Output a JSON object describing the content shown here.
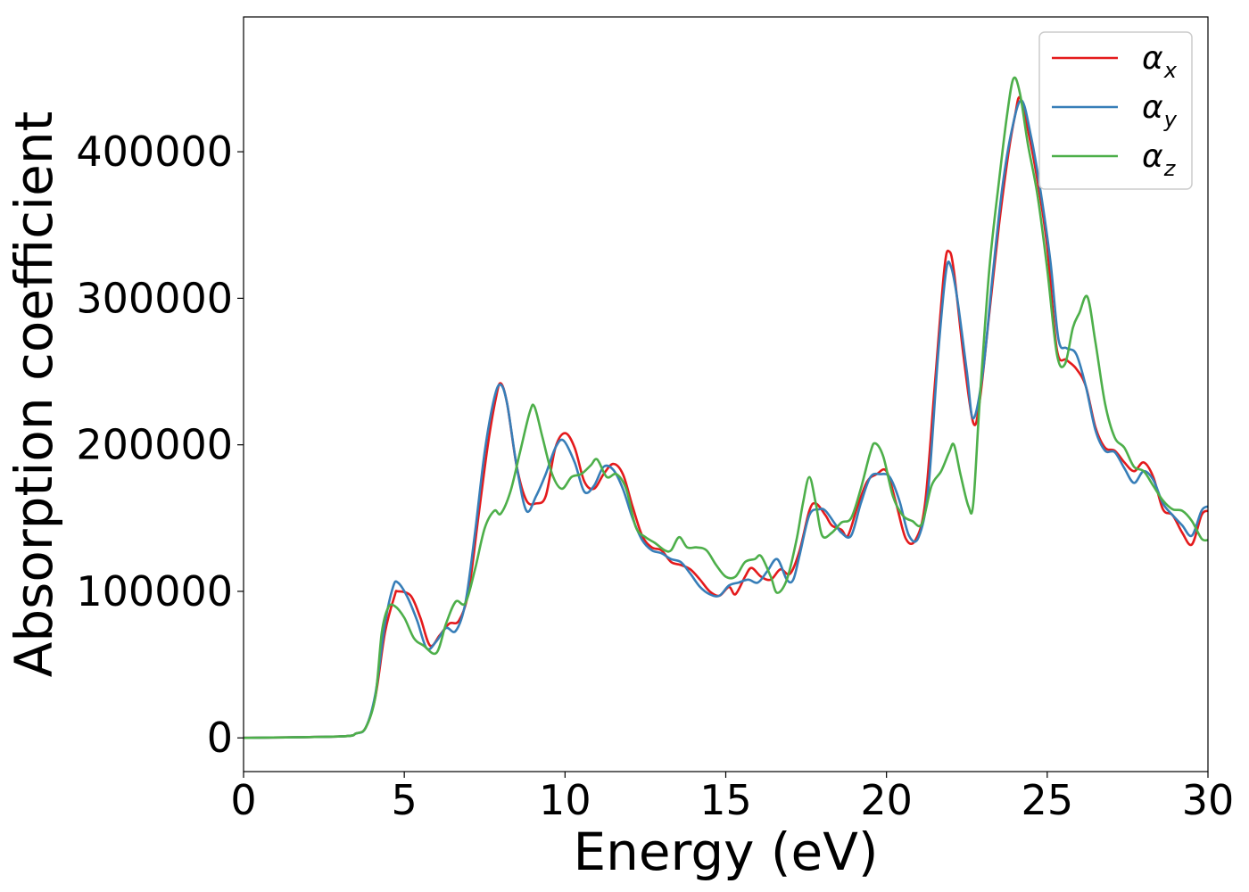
{
  "chart_data": {
    "type": "line",
    "xlabel": "Energy (eV)",
    "ylabel": "Absorption coefficient",
    "xlim": [
      0,
      30
    ],
    "ylim": [
      -23000,
      492000
    ],
    "xticks": [
      0,
      5,
      10,
      15,
      20,
      25,
      30
    ],
    "xtick_labels": [
      "0",
      "5",
      "10",
      "15",
      "20",
      "25",
      "30"
    ],
    "yticks": [
      0,
      100000,
      200000,
      300000,
      400000
    ],
    "ytick_labels": [
      "0",
      "100000",
      "200000",
      "300000",
      "400000"
    ],
    "grid": false,
    "legend_position": "top-right",
    "series": [
      {
        "name": "α",
        "sub": "x",
        "color": "#e41a1c",
        "points": [
          [
            0,
            0
          ],
          [
            3,
            1000
          ],
          [
            3.5,
            3000
          ],
          [
            3.8,
            7000
          ],
          [
            4.1,
            28000
          ],
          [
            4.4,
            72000
          ],
          [
            4.7,
            97000
          ],
          [
            4.8,
            100000
          ],
          [
            5.2,
            97000
          ],
          [
            5.5,
            82000
          ],
          [
            5.8,
            63000
          ],
          [
            6.1,
            70000
          ],
          [
            6.4,
            78000
          ],
          [
            6.7,
            80000
          ],
          [
            7.0,
            100000
          ],
          [
            7.3,
            150000
          ],
          [
            7.6,
            200000
          ],
          [
            7.85,
            232000
          ],
          [
            8.0,
            242000
          ],
          [
            8.2,
            228000
          ],
          [
            8.5,
            185000
          ],
          [
            8.8,
            162000
          ],
          [
            9.1,
            160000
          ],
          [
            9.4,
            165000
          ],
          [
            9.7,
            198000
          ],
          [
            10.0,
            208000
          ],
          [
            10.3,
            198000
          ],
          [
            10.6,
            175000
          ],
          [
            10.9,
            170000
          ],
          [
            11.2,
            180000
          ],
          [
            11.5,
            187000
          ],
          [
            11.8,
            180000
          ],
          [
            12.1,
            158000
          ],
          [
            12.4,
            138000
          ],
          [
            12.7,
            130000
          ],
          [
            13.0,
            128000
          ],
          [
            13.3,
            120000
          ],
          [
            13.6,
            118000
          ],
          [
            13.9,
            115000
          ],
          [
            14.2,
            108000
          ],
          [
            14.5,
            100000
          ],
          [
            14.8,
            97000
          ],
          [
            15.1,
            103000
          ],
          [
            15.3,
            98000
          ],
          [
            15.6,
            110000
          ],
          [
            15.8,
            116000
          ],
          [
            16.1,
            110000
          ],
          [
            16.4,
            108000
          ],
          [
            16.7,
            115000
          ],
          [
            17.0,
            112000
          ],
          [
            17.3,
            128000
          ],
          [
            17.6,
            155000
          ],
          [
            17.8,
            160000
          ],
          [
            18.1,
            152000
          ],
          [
            18.3,
            145000
          ],
          [
            18.6,
            142000
          ],
          [
            18.8,
            138000
          ],
          [
            19.1,
            158000
          ],
          [
            19.4,
            175000
          ],
          [
            19.7,
            180000
          ],
          [
            20.0,
            182000
          ],
          [
            20.3,
            160000
          ],
          [
            20.6,
            136000
          ],
          [
            20.9,
            135000
          ],
          [
            21.2,
            160000
          ],
          [
            21.5,
            240000
          ],
          [
            21.8,
            320000
          ],
          [
            21.95,
            332000
          ],
          [
            22.1,
            318000
          ],
          [
            22.4,
            260000
          ],
          [
            22.7,
            215000
          ],
          [
            22.9,
            230000
          ],
          [
            23.2,
            290000
          ],
          [
            23.5,
            350000
          ],
          [
            23.8,
            400000
          ],
          [
            24.0,
            425000
          ],
          [
            24.15,
            437000
          ],
          [
            24.4,
            415000
          ],
          [
            24.7,
            380000
          ],
          [
            25.0,
            335000
          ],
          [
            25.3,
            265000
          ],
          [
            25.6,
            258000
          ],
          [
            25.9,
            252000
          ],
          [
            26.2,
            240000
          ],
          [
            26.5,
            212000
          ],
          [
            26.8,
            198000
          ],
          [
            27.1,
            196000
          ],
          [
            27.4,
            188000
          ],
          [
            27.7,
            182000
          ],
          [
            28.0,
            188000
          ],
          [
            28.3,
            178000
          ],
          [
            28.6,
            156000
          ],
          [
            28.9,
            152000
          ],
          [
            29.2,
            140000
          ],
          [
            29.5,
            132000
          ],
          [
            29.8,
            152000
          ],
          [
            30.0,
            155000
          ]
        ]
      },
      {
        "name": "α",
        "sub": "y",
        "color": "#377eb8",
        "points": [
          [
            0,
            0
          ],
          [
            3,
            1000
          ],
          [
            3.5,
            3000
          ],
          [
            3.8,
            7000
          ],
          [
            4.1,
            30000
          ],
          [
            4.4,
            78000
          ],
          [
            4.65,
            103000
          ],
          [
            4.8,
            106000
          ],
          [
            5.1,
            96000
          ],
          [
            5.4,
            80000
          ],
          [
            5.7,
            61000
          ],
          [
            6.0,
            66000
          ],
          [
            6.3,
            75000
          ],
          [
            6.6,
            73000
          ],
          [
            6.9,
            92000
          ],
          [
            7.2,
            140000
          ],
          [
            7.5,
            195000
          ],
          [
            7.8,
            232000
          ],
          [
            8.0,
            241000
          ],
          [
            8.2,
            228000
          ],
          [
            8.5,
            185000
          ],
          [
            8.8,
            155000
          ],
          [
            9.1,
            165000
          ],
          [
            9.4,
            180000
          ],
          [
            9.7,
            198000
          ],
          [
            9.95,
            203000
          ],
          [
            10.3,
            188000
          ],
          [
            10.6,
            168000
          ],
          [
            10.9,
            172000
          ],
          [
            11.2,
            185000
          ],
          [
            11.5,
            183000
          ],
          [
            11.8,
            170000
          ],
          [
            12.1,
            150000
          ],
          [
            12.4,
            135000
          ],
          [
            12.7,
            128000
          ],
          [
            13.0,
            126000
          ],
          [
            13.3,
            122000
          ],
          [
            13.6,
            120000
          ],
          [
            13.9,
            112000
          ],
          [
            14.2,
            103000
          ],
          [
            14.5,
            98000
          ],
          [
            14.8,
            97000
          ],
          [
            15.1,
            104000
          ],
          [
            15.4,
            106000
          ],
          [
            15.7,
            108000
          ],
          [
            16.0,
            106000
          ],
          [
            16.3,
            114000
          ],
          [
            16.6,
            122000
          ],
          [
            16.9,
            108000
          ],
          [
            17.1,
            108000
          ],
          [
            17.3,
            125000
          ],
          [
            17.6,
            152000
          ],
          [
            17.9,
            156000
          ],
          [
            18.1,
            155000
          ],
          [
            18.4,
            146000
          ],
          [
            18.6,
            140000
          ],
          [
            18.9,
            138000
          ],
          [
            19.2,
            160000
          ],
          [
            19.5,
            178000
          ],
          [
            19.8,
            180000
          ],
          [
            20.1,
            178000
          ],
          [
            20.4,
            162000
          ],
          [
            20.7,
            138000
          ],
          [
            21.0,
            137000
          ],
          [
            21.3,
            170000
          ],
          [
            21.6,
            260000
          ],
          [
            21.85,
            318000
          ],
          [
            22.0,
            322000
          ],
          [
            22.2,
            300000
          ],
          [
            22.5,
            250000
          ],
          [
            22.7,
            218000
          ],
          [
            23.0,
            250000
          ],
          [
            23.3,
            315000
          ],
          [
            23.6,
            375000
          ],
          [
            23.9,
            415000
          ],
          [
            24.2,
            435000
          ],
          [
            24.5,
            410000
          ],
          [
            24.8,
            372000
          ],
          [
            25.1,
            325000
          ],
          [
            25.35,
            272000
          ],
          [
            25.6,
            266000
          ],
          [
            25.9,
            262000
          ],
          [
            26.2,
            240000
          ],
          [
            26.5,
            210000
          ],
          [
            26.8,
            196000
          ],
          [
            27.1,
            195000
          ],
          [
            27.4,
            184000
          ],
          [
            27.7,
            174000
          ],
          [
            28.0,
            182000
          ],
          [
            28.3,
            176000
          ],
          [
            28.6,
            160000
          ],
          [
            28.9,
            152000
          ],
          [
            29.2,
            145000
          ],
          [
            29.5,
            138000
          ],
          [
            29.8,
            155000
          ],
          [
            30.0,
            158000
          ]
        ]
      },
      {
        "name": "α",
        "sub": "z",
        "color": "#4daf4a",
        "points": [
          [
            0,
            0
          ],
          [
            3,
            1000
          ],
          [
            3.5,
            3000
          ],
          [
            3.8,
            7000
          ],
          [
            4.1,
            28000
          ],
          [
            4.3,
            72000
          ],
          [
            4.5,
            89000
          ],
          [
            4.7,
            90000
          ],
          [
            5.0,
            82000
          ],
          [
            5.3,
            68000
          ],
          [
            5.6,
            63000
          ],
          [
            6.0,
            58000
          ],
          [
            6.3,
            78000
          ],
          [
            6.6,
            93000
          ],
          [
            6.9,
            92000
          ],
          [
            7.2,
            115000
          ],
          [
            7.5,
            143000
          ],
          [
            7.8,
            155000
          ],
          [
            8.0,
            153000
          ],
          [
            8.3,
            168000
          ],
          [
            8.6,
            195000
          ],
          [
            8.9,
            222000
          ],
          [
            9.05,
            226000
          ],
          [
            9.3,
            205000
          ],
          [
            9.6,
            180000
          ],
          [
            9.9,
            170000
          ],
          [
            10.2,
            178000
          ],
          [
            10.5,
            180000
          ],
          [
            10.8,
            186000
          ],
          [
            11.0,
            190000
          ],
          [
            11.3,
            178000
          ],
          [
            11.6,
            180000
          ],
          [
            11.9,
            170000
          ],
          [
            12.2,
            144000
          ],
          [
            12.5,
            137000
          ],
          [
            12.8,
            133000
          ],
          [
            13.1,
            128000
          ],
          [
            13.3,
            128000
          ],
          [
            13.55,
            137000
          ],
          [
            13.8,
            130000
          ],
          [
            14.1,
            130000
          ],
          [
            14.4,
            128000
          ],
          [
            14.7,
            118000
          ],
          [
            15.0,
            110000
          ],
          [
            15.3,
            110000
          ],
          [
            15.6,
            120000
          ],
          [
            15.9,
            122000
          ],
          [
            16.1,
            124000
          ],
          [
            16.4,
            110000
          ],
          [
            16.6,
            99000
          ],
          [
            16.9,
            108000
          ],
          [
            17.2,
            135000
          ],
          [
            17.4,
            160000
          ],
          [
            17.6,
            178000
          ],
          [
            17.8,
            160000
          ],
          [
            18.0,
            138000
          ],
          [
            18.3,
            140000
          ],
          [
            18.6,
            147000
          ],
          [
            18.9,
            150000
          ],
          [
            19.2,
            170000
          ],
          [
            19.5,
            195000
          ],
          [
            19.65,
            201000
          ],
          [
            19.9,
            192000
          ],
          [
            20.2,
            165000
          ],
          [
            20.5,
            152000
          ],
          [
            20.8,
            148000
          ],
          [
            21.1,
            146000
          ],
          [
            21.4,
            172000
          ],
          [
            21.7,
            182000
          ],
          [
            21.95,
            195000
          ],
          [
            22.1,
            200000
          ],
          [
            22.3,
            180000
          ],
          [
            22.55,
            158000
          ],
          [
            22.7,
            160000
          ],
          [
            22.9,
            230000
          ],
          [
            23.2,
            320000
          ],
          [
            23.5,
            380000
          ],
          [
            23.75,
            425000
          ],
          [
            23.95,
            450000
          ],
          [
            24.15,
            440000
          ],
          [
            24.4,
            405000
          ],
          [
            24.7,
            370000
          ],
          [
            25.0,
            320000
          ],
          [
            25.3,
            262000
          ],
          [
            25.55,
            255000
          ],
          [
            25.8,
            280000
          ],
          [
            26.0,
            290000
          ],
          [
            26.25,
            301000
          ],
          [
            26.5,
            270000
          ],
          [
            26.8,
            228000
          ],
          [
            27.1,
            205000
          ],
          [
            27.4,
            198000
          ],
          [
            27.7,
            185000
          ],
          [
            28.0,
            182000
          ],
          [
            28.3,
            172000
          ],
          [
            28.6,
            162000
          ],
          [
            28.9,
            156000
          ],
          [
            29.2,
            155000
          ],
          [
            29.5,
            148000
          ],
          [
            29.8,
            136000
          ],
          [
            30.0,
            135000
          ]
        ]
      }
    ]
  }
}
